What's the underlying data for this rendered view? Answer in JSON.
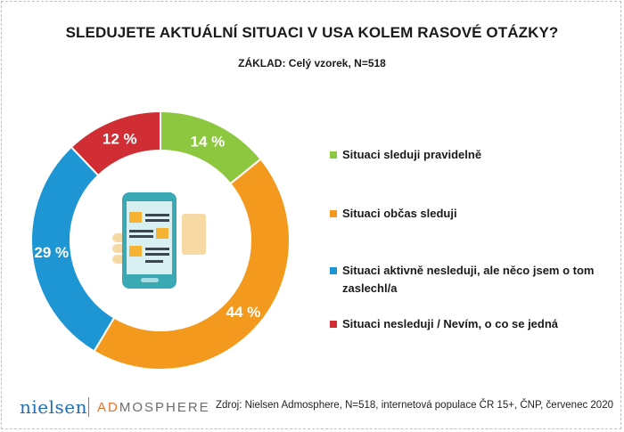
{
  "title": "SLEDUJETE AKTUÁLNÍ SITUACI V USA KOLEM RASOVÉ OTÁZKY?",
  "subtitle": "ZÁKLAD: Celý vzorek, N=518",
  "chart_data": {
    "type": "pie",
    "donut": true,
    "title": "SLEDUJETE AKTUÁLNÍ SITUACI V USA KOLEM RASOVÉ OTÁZKY?",
    "legend_placement": "right",
    "slices": [
      {
        "label": "Situaci sleduji pravidelně",
        "value": 14,
        "display": "14 %",
        "color": "#8dc63f"
      },
      {
        "label": "Situaci občas sleduji",
        "value": 44,
        "display": "44 %",
        "color": "#f39a1e"
      },
      {
        "label": "Situaci aktivně nesleduji, ale něco jsem o tom zaslechl/a",
        "value": 29,
        "display": "29 %",
        "color": "#1e96d4"
      },
      {
        "label": "Situaci nesleduji / Nevím, o co se jedná",
        "value": 12,
        "display": "12 %",
        "color": "#d12d35"
      }
    ]
  },
  "source": "Zdroj: Nielsen Admosphere, N=518, internetová populace ČR 15+, ČNP, červenec 2020",
  "logos": {
    "nielsen": "nielsen",
    "admosphere_accent": "AD",
    "admosphere_rest": "MOSPHERE"
  },
  "icon": "smartphone-news-thumbs-up-icon"
}
